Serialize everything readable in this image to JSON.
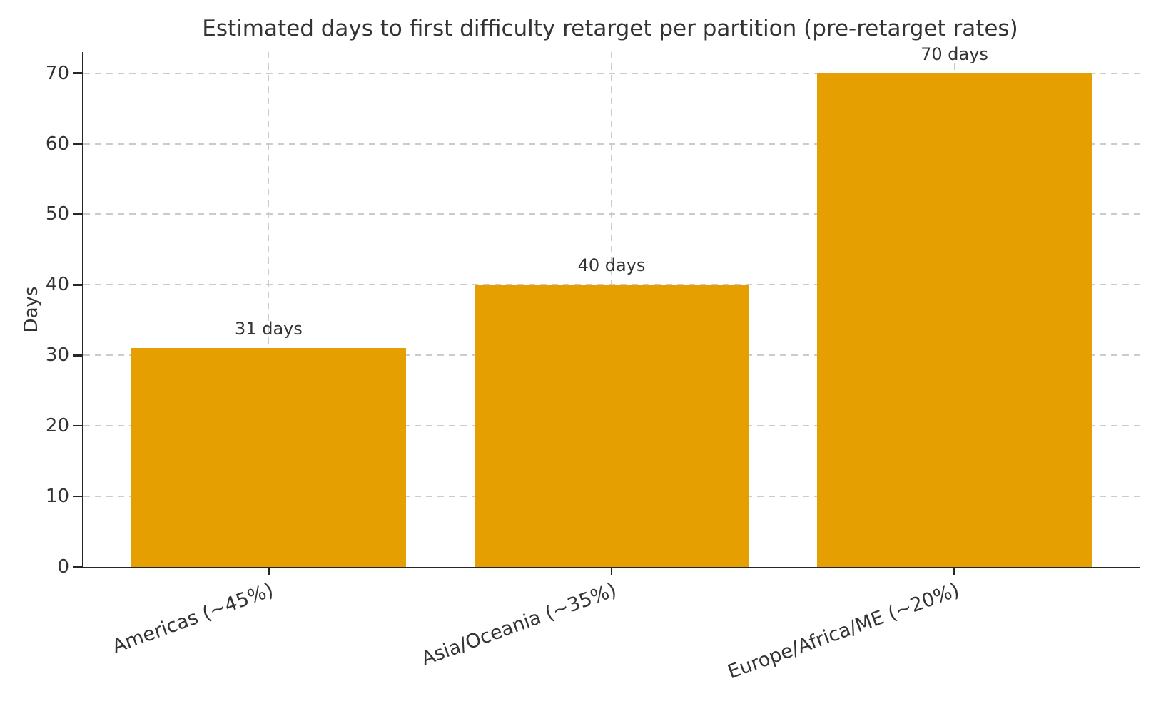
{
  "chart_data": {
    "type": "bar",
    "title": "Estimated days to first difficulty retarget per partition (pre-retarget rates)",
    "xlabel": "",
    "ylabel": "Days",
    "categories": [
      "Americas (~45%)",
      "Asia/Oceania (~35%)",
      "Europe/Africa/ME (~20%)"
    ],
    "values": [
      31,
      40,
      70
    ],
    "bar_labels": [
      "31 days",
      "40 days",
      "70 days"
    ],
    "yticks": [
      0,
      10,
      20,
      30,
      40,
      50,
      60,
      70
    ],
    "ytick_labels": [
      "0",
      "10",
      "20",
      "30",
      "40",
      "50",
      "60",
      "70"
    ],
    "ylim": [
      0,
      73
    ],
    "x_tick_rotation_deg": 20,
    "grid": "dashed, horizontal and vertical",
    "legend": "none",
    "colors": {
      "bar": "#E69F00",
      "text": "#333333",
      "grid": "#cbcbcb",
      "spine": "#262626",
      "background": "#ffffff"
    }
  }
}
